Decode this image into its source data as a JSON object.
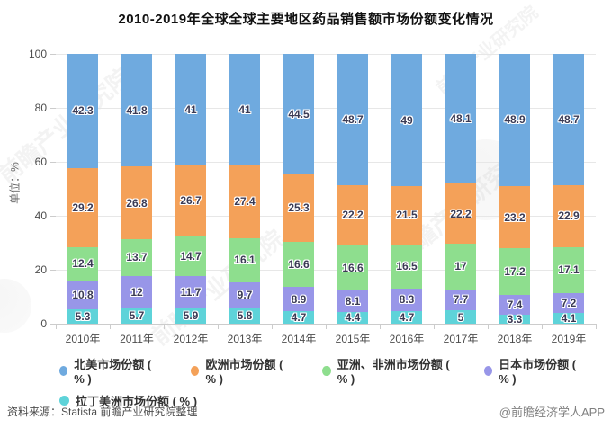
{
  "title": "2010-2019年全球全球主要地区药品销售额市场份额变化情况",
  "y_axis": {
    "unit_label": "单位：%",
    "ticks": [
      0,
      20,
      40,
      60,
      80,
      100
    ]
  },
  "watermark_text": "前瞻产业研究院",
  "colors": {
    "north_america": "#6FAADF",
    "europe": "#F4A159",
    "asia_africa": "#8EDE8E",
    "japan": "#9896E8",
    "latin_america": "#5ED3D9",
    "grid": "#E7E7E7",
    "axis": "#CCCCCC"
  },
  "chart_data": {
    "type": "bar",
    "stacked": true,
    "title": "2010-2019年全球全球主要地区药品销售额市场份额变化情况",
    "ylabel": "单位：%",
    "ylim": [
      0,
      100
    ],
    "grid": true,
    "legend_position": "bottom",
    "categories": [
      "2010年",
      "2011年",
      "2012年",
      "2013年",
      "2014年",
      "2015年",
      "2016年",
      "2017年",
      "2018年",
      "2019年"
    ],
    "series": [
      {
        "name": "北美市场份额 ( % )",
        "color": "#6FAADF",
        "values": [
          42.3,
          41.8,
          41,
          41,
          44.5,
          48.7,
          49,
          48.1,
          48.9,
          48.7
        ]
      },
      {
        "name": "欧洲市场份额 ( % )",
        "color": "#F4A159",
        "values": [
          29.2,
          26.8,
          26.7,
          27.4,
          25.3,
          22.2,
          21.5,
          22.2,
          23.2,
          22.9
        ]
      },
      {
        "name": "亚洲、非洲市场份额 ( % )",
        "color": "#8EDE8E",
        "values": [
          12.4,
          13.7,
          14.7,
          16.1,
          16.6,
          16.6,
          16.5,
          17,
          17.2,
          17.1
        ]
      },
      {
        "name": "日本市场份额 ( % )",
        "color": "#9896E8",
        "values": [
          10.8,
          12,
          11.7,
          9.7,
          8.9,
          8.1,
          8.3,
          7.7,
          7.4,
          7.2
        ]
      },
      {
        "name": "拉丁美洲市场份额 ( % )",
        "color": "#5ED3D9",
        "values": [
          5.3,
          5.7,
          5.9,
          5.8,
          4.7,
          4.4,
          4.7,
          5,
          3.3,
          4.1
        ]
      }
    ]
  },
  "footer": {
    "source": "资料来源：Statista 前瞻产业研究院整理",
    "credit": "@前瞻经济学人APP"
  }
}
